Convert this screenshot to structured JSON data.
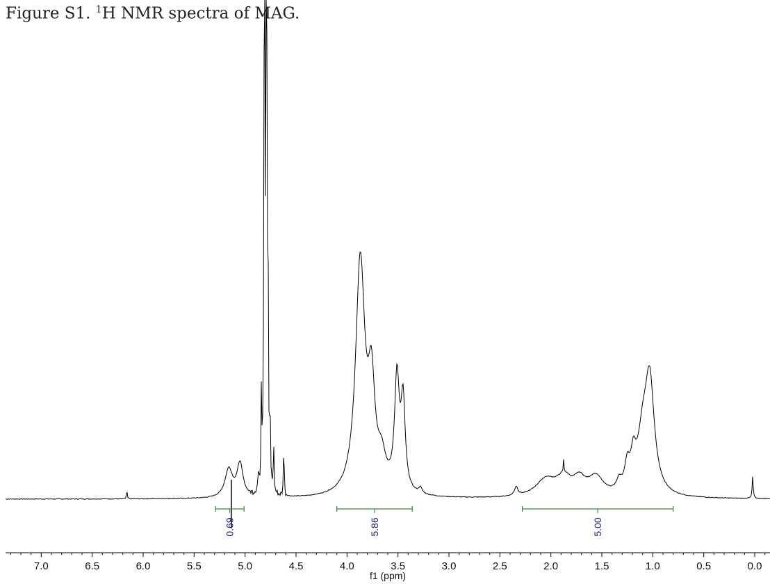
{
  "caption": {
    "prefix": "Figure S1. ",
    "superscript": "1",
    "rest": "H NMR spectra of MAG."
  },
  "chart_data": {
    "type": "line",
    "title": "Figure S1. 1H NMR spectra of MAG.",
    "xlabel": "f1 (ppm)",
    "ylabel": "",
    "xlim": [
      7.35,
      -0.15
    ],
    "x_reversed": true,
    "ylim": [
      -0.05,
      1.0
    ],
    "grid": false,
    "x_ticks": [
      7.0,
      6.5,
      6.0,
      5.5,
      5.0,
      4.5,
      4.0,
      3.5,
      3.0,
      2.5,
      2.0,
      1.5,
      1.0,
      0.5,
      0.0
    ],
    "x_tick_labels": [
      "7.0",
      "6.5",
      "6.0",
      "5.5",
      "5.0",
      "4.5",
      "4.0",
      "3.5",
      "3.0",
      "2.5",
      "2.0",
      "1.5",
      "1.0",
      "0.5",
      "0.0"
    ],
    "line_color": "#000000",
    "series": [
      {
        "peaks": [
          {
            "x": 6.16,
            "height": 0.02,
            "width": 0.004
          },
          {
            "x": 5.16,
            "height": 0.058,
            "width": 0.045
          },
          {
            "x": 5.05,
            "height": 0.068,
            "width": 0.035
          },
          {
            "x": 4.87,
            "height": 0.03,
            "width": 0.006
          },
          {
            "x": 4.84,
            "height": 0.19,
            "width": 0.004
          },
          {
            "x": 4.81,
            "height": 1.15,
            "width": 0.006
          },
          {
            "x": 4.79,
            "height": 1.15,
            "width": 0.006
          },
          {
            "x": 4.775,
            "height": 0.42,
            "width": 0.004
          },
          {
            "x": 4.755,
            "height": 0.16,
            "width": 0.004
          },
          {
            "x": 4.72,
            "height": 0.1,
            "width": 0.004
          },
          {
            "x": 4.62,
            "height": 0.12,
            "width": 0.004
          },
          {
            "x": 3.87,
            "height": 0.48,
            "width": 0.055
          },
          {
            "x": 3.76,
            "height": 0.2,
            "width": 0.04
          },
          {
            "x": 3.66,
            "height": 0.06,
            "width": 0.05
          },
          {
            "x": 3.51,
            "height": 0.23,
            "width": 0.028
          },
          {
            "x": 3.45,
            "height": 0.18,
            "width": 0.025
          },
          {
            "x": 3.28,
            "height": 0.012,
            "width": 0.02
          },
          {
            "x": 2.34,
            "height": 0.018,
            "width": 0.02
          },
          {
            "x": 2.05,
            "height": 0.035,
            "width": 0.12
          },
          {
            "x": 1.87,
            "height": 0.035,
            "width": 0.09
          },
          {
            "x": 1.72,
            "height": 0.03,
            "width": 0.07
          },
          {
            "x": 1.56,
            "height": 0.038,
            "width": 0.09
          },
          {
            "x": 1.33,
            "height": 0.02,
            "width": 0.03
          },
          {
            "x": 1.25,
            "height": 0.05,
            "width": 0.03
          },
          {
            "x": 1.19,
            "height": 0.06,
            "width": 0.03
          },
          {
            "x": 1.1,
            "height": 0.1,
            "width": 0.06
          },
          {
            "x": 1.03,
            "height": 0.225,
            "width": 0.055
          },
          {
            "x": 1.875,
            "height": 0.025,
            "width": 0.004
          },
          {
            "x": 0.02,
            "height": 0.045,
            "width": 0.006
          }
        ]
      }
    ],
    "integrals": [
      {
        "from": 5.29,
        "to": 5.01,
        "label": "0.69",
        "value": 0.69
      },
      {
        "from": 4.1,
        "to": 3.36,
        "label": "5.86",
        "value": 5.86
      },
      {
        "from": 2.28,
        "to": 0.8,
        "label": "5.00",
        "value": 5.0
      }
    ],
    "integral_color": "#2e8b2e",
    "integral_label_color": "#1a1a8a"
  }
}
